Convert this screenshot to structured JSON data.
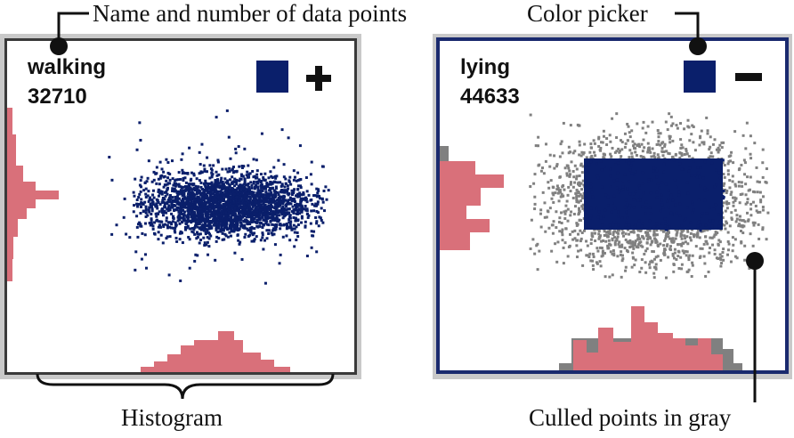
{
  "annotations": {
    "name_and_count": "Name and number of data points",
    "color_picker": "Color picker",
    "histogram": "Histogram",
    "culled_points": "Culled points  in gray"
  },
  "panels": [
    {
      "name": "walking",
      "count": "32710",
      "toggle_icon": "plus-icon",
      "point_color": "#0a1f6b"
    },
    {
      "name": "lying",
      "count": "44633",
      "toggle_icon": "minus-icon",
      "point_color": "#0a1f6b",
      "culled_color": "#808080"
    }
  ],
  "colors": {
    "points": "#0a1f6b",
    "histogram": "#d9707a",
    "culled": "#808080",
    "left_frame": "#3a3a3a",
    "right_frame": "#1a2a6e"
  }
}
